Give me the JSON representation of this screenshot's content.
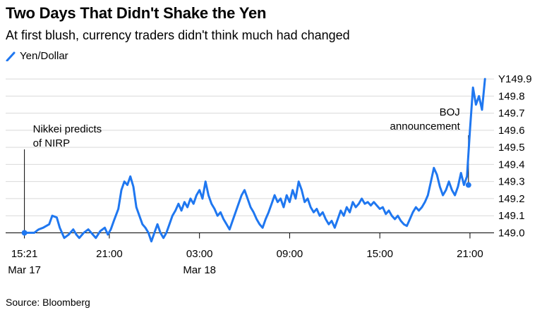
{
  "title": "Two Days That Didn't Shake the Yen",
  "subtitle": "At first blush, currency traders didn't think much had changed",
  "source": "Source: Bloomberg",
  "chart_data": {
    "type": "line",
    "series": [
      {
        "name": "Yen/Dollar",
        "color": "#1f77f0",
        "points": [
          [
            15.35,
            149.0
          ],
          [
            15.7,
            149.0
          ],
          [
            16.0,
            149.0
          ],
          [
            16.3,
            149.02
          ],
          [
            16.6,
            149.03
          ],
          [
            17.0,
            149.05
          ],
          [
            17.2,
            149.1
          ],
          [
            17.5,
            149.09
          ],
          [
            17.7,
            149.03
          ],
          [
            17.85,
            149.0
          ],
          [
            18.0,
            148.97
          ],
          [
            18.3,
            148.99
          ],
          [
            18.6,
            149.02
          ],
          [
            18.8,
            148.99
          ],
          [
            19.0,
            148.97
          ],
          [
            19.3,
            149.0
          ],
          [
            19.6,
            149.02
          ],
          [
            19.9,
            148.99
          ],
          [
            20.1,
            148.97
          ],
          [
            20.4,
            149.01
          ],
          [
            20.7,
            149.03
          ],
          [
            20.9,
            148.99
          ],
          [
            21.1,
            149.02
          ],
          [
            21.3,
            149.07
          ],
          [
            21.6,
            149.14
          ],
          [
            21.8,
            149.25
          ],
          [
            22.0,
            149.3
          ],
          [
            22.2,
            149.28
          ],
          [
            22.4,
            149.33
          ],
          [
            22.6,
            149.27
          ],
          [
            22.8,
            149.15
          ],
          [
            23.0,
            149.1
          ],
          [
            23.2,
            149.05
          ],
          [
            23.4,
            149.03
          ],
          [
            23.6,
            149.0
          ],
          [
            23.8,
            148.95
          ],
          [
            24.0,
            149.0
          ],
          [
            24.2,
            149.05
          ],
          [
            24.4,
            149.0
          ],
          [
            24.6,
            148.97
          ],
          [
            24.8,
            149.0
          ],
          [
            25.0,
            149.05
          ],
          [
            25.2,
            149.1
          ],
          [
            25.4,
            149.13
          ],
          [
            25.6,
            149.17
          ],
          [
            25.8,
            149.13
          ],
          [
            26.0,
            149.18
          ],
          [
            26.2,
            149.15
          ],
          [
            26.4,
            149.2
          ],
          [
            26.6,
            149.17
          ],
          [
            26.8,
            149.22
          ],
          [
            27.0,
            149.25
          ],
          [
            27.2,
            149.2
          ],
          [
            27.4,
            149.3
          ],
          [
            27.6,
            149.22
          ],
          [
            27.8,
            149.17
          ],
          [
            28.0,
            149.14
          ],
          [
            28.2,
            149.1
          ],
          [
            28.4,
            149.12
          ],
          [
            28.6,
            149.08
          ],
          [
            28.8,
            149.05
          ],
          [
            29.0,
            149.02
          ],
          [
            29.2,
            149.07
          ],
          [
            29.4,
            149.12
          ],
          [
            29.6,
            149.17
          ],
          [
            29.8,
            149.22
          ],
          [
            30.0,
            149.25
          ],
          [
            30.2,
            149.2
          ],
          [
            30.4,
            149.15
          ],
          [
            30.6,
            149.12
          ],
          [
            30.8,
            149.08
          ],
          [
            31.0,
            149.05
          ],
          [
            31.2,
            149.03
          ],
          [
            31.4,
            149.08
          ],
          [
            31.6,
            149.12
          ],
          [
            31.8,
            149.17
          ],
          [
            32.0,
            149.22
          ],
          [
            32.2,
            149.18
          ],
          [
            32.4,
            149.2
          ],
          [
            32.6,
            149.15
          ],
          [
            32.8,
            149.22
          ],
          [
            33.0,
            149.18
          ],
          [
            33.2,
            149.25
          ],
          [
            33.4,
            149.2
          ],
          [
            33.6,
            149.3
          ],
          [
            33.8,
            149.25
          ],
          [
            34.0,
            149.18
          ],
          [
            34.2,
            149.2
          ],
          [
            34.4,
            149.15
          ],
          [
            34.6,
            149.12
          ],
          [
            34.8,
            149.14
          ],
          [
            35.0,
            149.1
          ],
          [
            35.2,
            149.12
          ],
          [
            35.4,
            149.08
          ],
          [
            35.6,
            149.05
          ],
          [
            35.8,
            149.07
          ],
          [
            36.0,
            149.03
          ],
          [
            36.2,
            149.08
          ],
          [
            36.4,
            149.13
          ],
          [
            36.6,
            149.1
          ],
          [
            36.8,
            149.15
          ],
          [
            37.0,
            149.12
          ],
          [
            37.2,
            149.18
          ],
          [
            37.4,
            149.15
          ],
          [
            37.6,
            149.17
          ],
          [
            37.8,
            149.2
          ],
          [
            38.0,
            149.17
          ],
          [
            38.2,
            149.18
          ],
          [
            38.4,
            149.16
          ],
          [
            38.6,
            149.18
          ],
          [
            38.8,
            149.16
          ],
          [
            39.0,
            149.14
          ],
          [
            39.2,
            149.15
          ],
          [
            39.4,
            149.11
          ],
          [
            39.6,
            149.13
          ],
          [
            39.8,
            149.1
          ],
          [
            40.0,
            149.08
          ],
          [
            40.2,
            149.1
          ],
          [
            40.4,
            149.07
          ],
          [
            40.6,
            149.05
          ],
          [
            40.8,
            149.04
          ],
          [
            41.0,
            149.08
          ],
          [
            41.2,
            149.12
          ],
          [
            41.4,
            149.15
          ],
          [
            41.6,
            149.13
          ],
          [
            41.8,
            149.15
          ],
          [
            42.0,
            149.18
          ],
          [
            42.2,
            149.22
          ],
          [
            42.4,
            149.3
          ],
          [
            42.6,
            149.38
          ],
          [
            42.8,
            149.34
          ],
          [
            43.0,
            149.27
          ],
          [
            43.2,
            149.22
          ],
          [
            43.4,
            149.25
          ],
          [
            43.6,
            149.3
          ],
          [
            43.8,
            149.25
          ],
          [
            44.0,
            149.22
          ],
          [
            44.2,
            149.27
          ],
          [
            44.4,
            149.35
          ],
          [
            44.6,
            149.28
          ],
          [
            44.8,
            149.33
          ],
          [
            45.0,
            149.6
          ],
          [
            45.2,
            149.85
          ],
          [
            45.4,
            149.75
          ],
          [
            45.6,
            149.8
          ],
          [
            45.8,
            149.72
          ],
          [
            46.0,
            149.9
          ]
        ]
      }
    ],
    "x_ticks": [
      {
        "value": 15.35,
        "label": "15:21",
        "sublabel": "Mar 17"
      },
      {
        "value": 21,
        "label": "21:00",
        "sublabel": ""
      },
      {
        "value": 27,
        "label": "03:00",
        "sublabel": "Mar 18"
      },
      {
        "value": 33,
        "label": "09:00",
        "sublabel": ""
      },
      {
        "value": 39,
        "label": "15:00",
        "sublabel": ""
      },
      {
        "value": 45,
        "label": "21:00",
        "sublabel": ""
      }
    ],
    "y_ticks": [
      {
        "value": 149.9,
        "label": "Y149.9"
      },
      {
        "value": 149.8,
        "label": "149.8"
      },
      {
        "value": 149.7,
        "label": "149.7"
      },
      {
        "value": 149.6,
        "label": "149.6"
      },
      {
        "value": 149.5,
        "label": "149.5"
      },
      {
        "value": 149.4,
        "label": "149.4"
      },
      {
        "value": 149.3,
        "label": "149.3"
      },
      {
        "value": 149.2,
        "label": "149.2"
      },
      {
        "value": 149.1,
        "label": "149.1"
      },
      {
        "value": 149.0,
        "label": "149.0"
      }
    ],
    "xlim": [
      14.1,
      46.6
    ],
    "ylim": [
      148.94,
      149.95
    ],
    "grid": true,
    "legend_position": "top-left",
    "annotations": [
      {
        "x": 15.35,
        "y": 149.0,
        "lines": [
          "Nikkei predicts",
          "of NIRP"
        ],
        "align": "left"
      },
      {
        "x": 44.9,
        "y": 149.28,
        "lines": [
          "BOJ",
          "announcement"
        ],
        "align": "right"
      }
    ]
  }
}
